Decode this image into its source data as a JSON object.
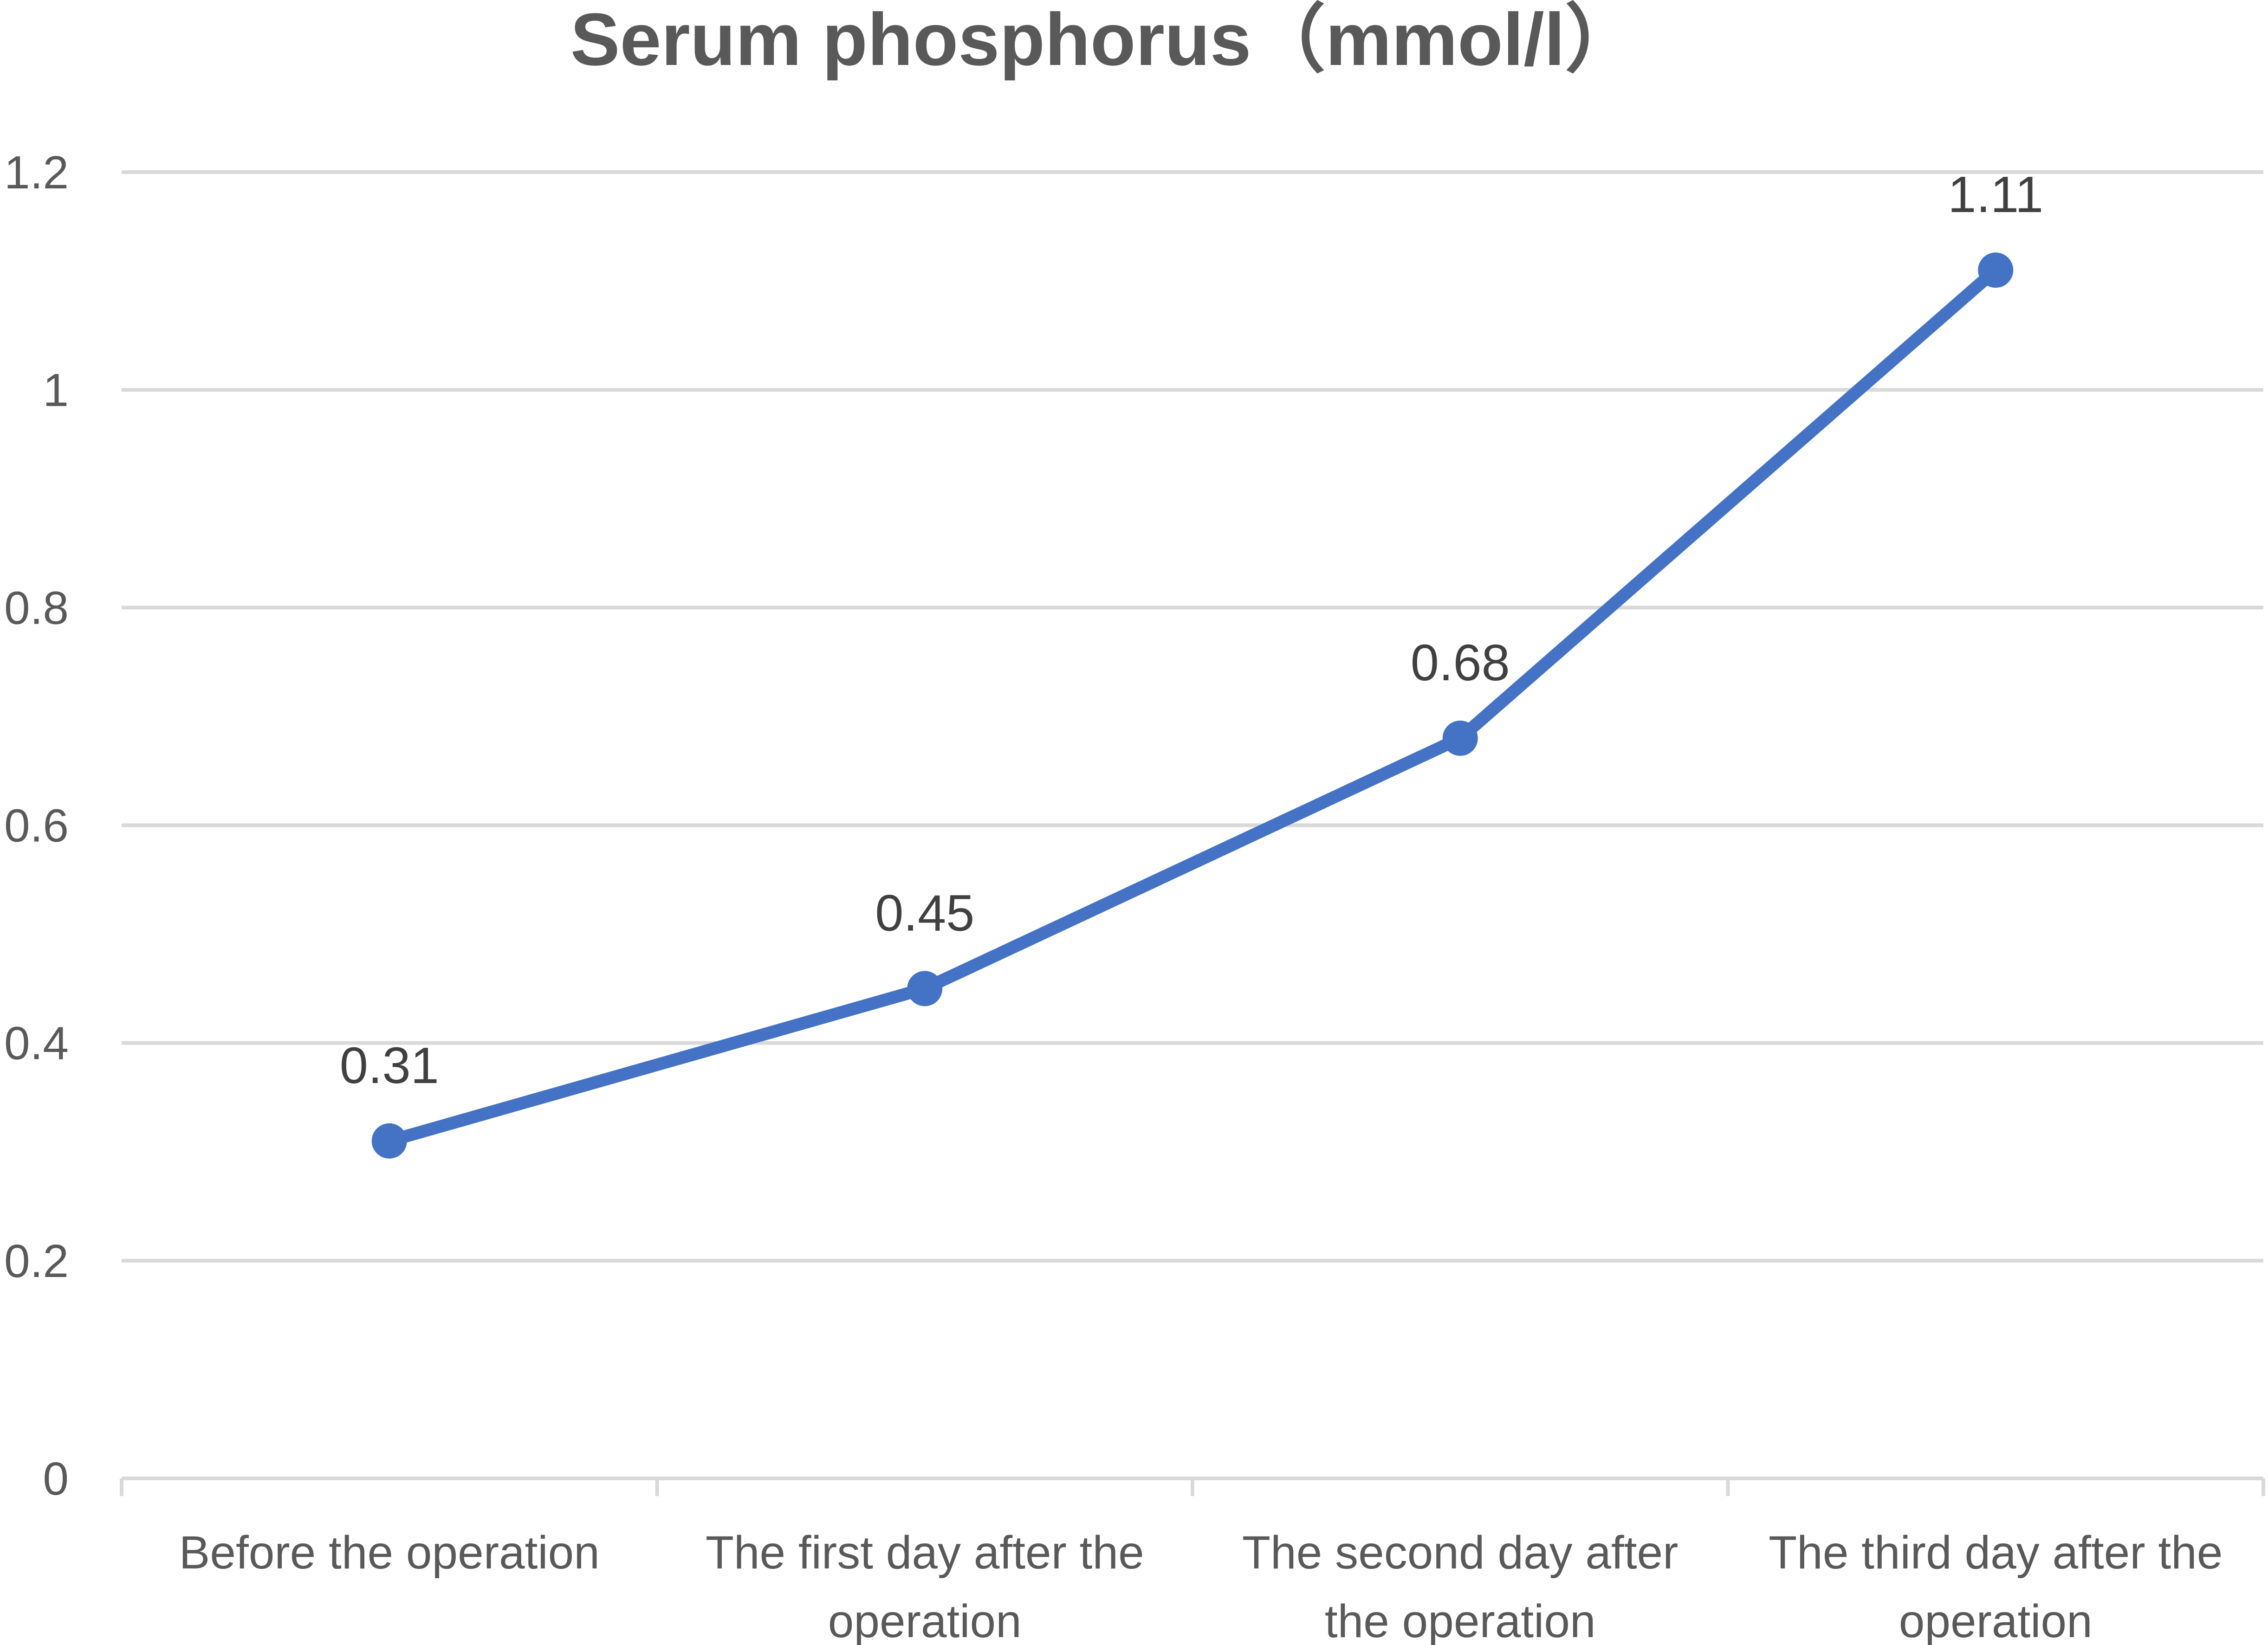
{
  "chart_data": {
    "type": "line",
    "title": "Serum phosphorus（mmol/l）",
    "xlabel": "",
    "ylabel": "",
    "categories": [
      [
        "Before the operation"
      ],
      [
        "The first day after the",
        "operation"
      ],
      [
        "The second day after",
        "the operation"
      ],
      [
        "The third day after the",
        "operation"
      ]
    ],
    "series": [
      {
        "values": [
          0.31,
          0.45,
          0.68,
          1.11
        ],
        "color": "#4472c4"
      }
    ],
    "data_labels": [
      "0.31",
      "0.45",
      "0.68",
      "1.11"
    ],
    "ylim": [
      0,
      1.2
    ],
    "yticks": [
      0,
      0.2,
      0.4,
      0.6,
      0.8,
      1,
      1.2
    ],
    "ytick_labels": [
      "0",
      "0.2",
      "0.4",
      "0.6",
      "0.8",
      "1",
      "1.2"
    ],
    "grid": true,
    "legend": "none",
    "marker": "circle"
  }
}
